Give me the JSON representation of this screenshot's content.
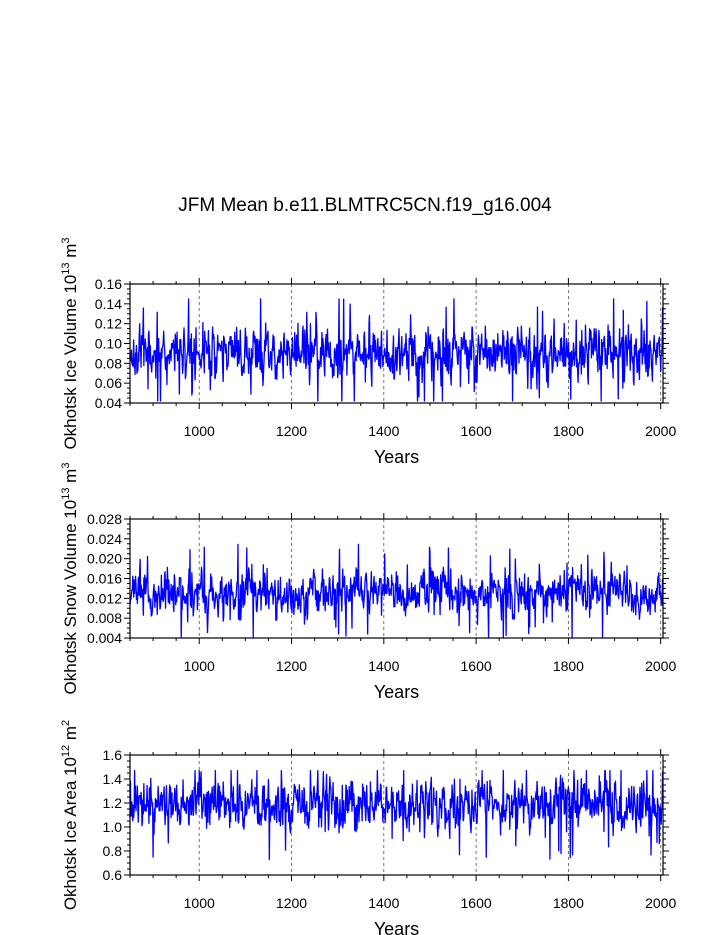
{
  "title": "JFM Mean b.e11.BLMTRC5CN.f19_g16.004",
  "chart_data": [
    {
      "type": "line",
      "ylabel_main": "Okhotsk Ice Volume 10",
      "ylabel_exp": "13",
      "ylabel_unit": "m",
      "ylabel_unit_exp": "3",
      "xlabel": "Years",
      "xlim": [
        850,
        2005
      ],
      "ylim": [
        0.04,
        0.16
      ],
      "xticks": [
        "1000",
        "1200",
        "1400",
        "1600",
        "1800",
        "2000"
      ],
      "xtick_values": [
        1000,
        1200,
        1400,
        1600,
        1800,
        2000
      ],
      "yticks": [
        "0.04",
        "0.06",
        "0.08",
        "0.10",
        "0.12",
        "0.14",
        "0.16"
      ],
      "ytick_values": [
        0.04,
        0.06,
        0.08,
        0.1,
        0.12,
        0.14,
        0.16
      ],
      "color": "#0000ff",
      "series": {
        "start_year": 850,
        "end_year": 2005,
        "mean": 0.094,
        "typical_range": [
          0.06,
          0.122
        ],
        "min": 0.042,
        "max": 0.145,
        "seed": 11
      }
    },
    {
      "type": "line",
      "ylabel_main": "Okhotsk Snow Volume 10",
      "ylabel_exp": "13",
      "ylabel_unit": "m",
      "ylabel_unit_exp": "3",
      "xlabel": "Years",
      "xlim": [
        850,
        2005
      ],
      "ylim": [
        0.004,
        0.028
      ],
      "xticks": [
        "1000",
        "1200",
        "1400",
        "1600",
        "1800",
        "2000"
      ],
      "xtick_values": [
        1000,
        1200,
        1400,
        1600,
        1800,
        2000
      ],
      "yticks": [
        "0.004",
        "0.008",
        "0.012",
        "0.016",
        "0.020",
        "0.024",
        "0.028"
      ],
      "ytick_values": [
        0.004,
        0.008,
        0.012,
        0.016,
        0.02,
        0.024,
        0.028
      ],
      "color": "#0000ff",
      "series": {
        "start_year": 850,
        "end_year": 2005,
        "mean": 0.0123,
        "typical_range": [
          0.008,
          0.018
        ],
        "min": 0.004,
        "max": 0.0265,
        "seed": 23
      }
    },
    {
      "type": "line",
      "ylabel_main": "Okhotsk Ice Area 10",
      "ylabel_exp": "12",
      "ylabel_unit": "m",
      "ylabel_unit_exp": "2",
      "xlabel": "Years",
      "xlim": [
        850,
        2005
      ],
      "ylim": [
        0.6,
        1.6
      ],
      "xticks": [
        "1000",
        "1200",
        "1400",
        "1600",
        "1800",
        "2000"
      ],
      "xtick_values": [
        1000,
        1200,
        1400,
        1600,
        1800,
        2000
      ],
      "yticks": [
        "0.6",
        "0.8",
        "1.0",
        "1.2",
        "1.4",
        "1.6"
      ],
      "ytick_values": [
        0.6,
        0.8,
        1.0,
        1.2,
        1.4,
        1.6
      ],
      "color": "#0000ff",
      "series": {
        "start_year": 850,
        "end_year": 2005,
        "mean": 1.23,
        "typical_range": [
          0.95,
          1.42
        ],
        "min": 0.72,
        "max": 1.47,
        "seed": 37
      }
    }
  ]
}
